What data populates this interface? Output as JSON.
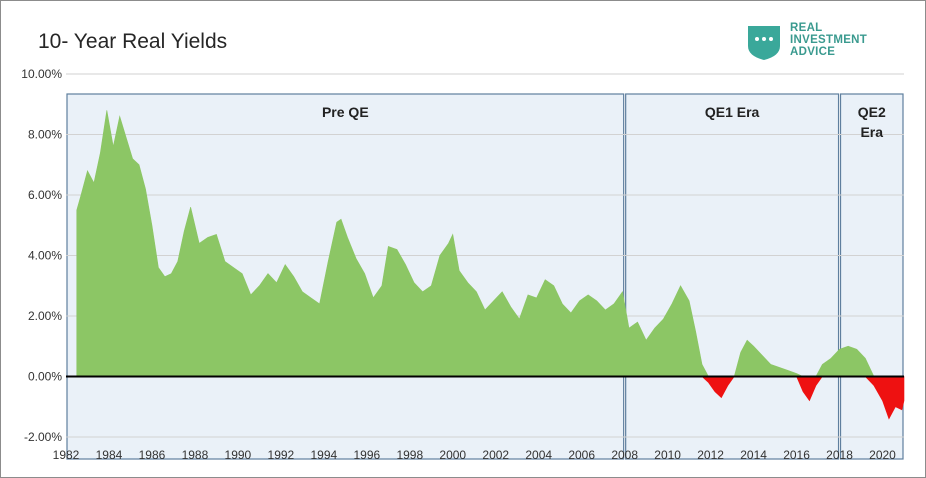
{
  "chart_data": {
    "type": "area",
    "title": "10- Year Real Yields",
    "xlabel": "",
    "ylabel": "",
    "xlim": [
      1982,
      2021
    ],
    "ylim": [
      -2,
      10
    ],
    "y_ticks": [
      -2,
      0,
      2,
      4,
      6,
      8,
      10
    ],
    "y_tick_labels": [
      "-2.00%",
      "0.00%",
      "2.00%",
      "4.00%",
      "6.00%",
      "8.00%",
      "10.00%"
    ],
    "x_ticks": [
      1982,
      1984,
      1986,
      1988,
      1990,
      1992,
      1994,
      1996,
      1998,
      2000,
      2002,
      2004,
      2006,
      2008,
      2010,
      2012,
      2014,
      2016,
      2018,
      2020
    ],
    "x_tick_labels": [
      "1982",
      "1984",
      "1986",
      "1988",
      "1990",
      "1992",
      "1994",
      "1996",
      "1998",
      "2000",
      "2002",
      "2004",
      "2006",
      "2008",
      "2010",
      "2012",
      "2014",
      "2016",
      "2018",
      "2020"
    ],
    "grid": "horizontal",
    "colors": {
      "positive": "#8cc665",
      "negative": "#ee1111",
      "zero_line": "#000000",
      "era_fill": "#eaf1f8",
      "era_border": "#5f7f9e"
    },
    "eras": [
      {
        "label": "Pre QE",
        "start": 1982,
        "end": 2008
      },
      {
        "label": "QE1 Era",
        "start": 2008,
        "end": 2018
      },
      {
        "label": "QE2 Era",
        "start": 2018,
        "end": 2021
      }
    ],
    "series": [
      {
        "x": [
          1982.5,
          1982.7,
          1983.0,
          1983.3,
          1983.6,
          1983.9,
          1984.2,
          1984.5,
          1984.8,
          1985.1,
          1985.4,
          1985.7,
          1986.0,
          1986.3,
          1986.6,
          1986.9,
          1987.2,
          1987.5,
          1987.8,
          1988.2,
          1988.6,
          1989.0,
          1989.4,
          1989.8,
          1990.2,
          1990.6,
          1991.0,
          1991.4,
          1991.8,
          1992.2,
          1992.6,
          1993.0,
          1993.4,
          1993.8,
          1994.2,
          1994.6,
          1994.8,
          1995.1,
          1995.5,
          1995.9,
          1996.3,
          1996.7,
          1997.0,
          1997.4,
          1997.8,
          1998.2,
          1998.6,
          1999.0,
          1999.4,
          1999.8,
          2000.0,
          2000.3,
          2000.7,
          2001.1,
          2001.5,
          2001.9,
          2002.3,
          2002.7,
          2003.1,
          2003.5,
          2003.9,
          2004.3,
          2004.7,
          2005.1,
          2005.5,
          2005.9,
          2006.3,
          2006.7,
          2007.1,
          2007.5,
          2007.9,
          2008.2,
          2008.6,
          2009.0,
          2009.4,
          2009.8,
          2010.2,
          2010.6,
          2011.0,
          2011.3,
          2011.6,
          2011.9,
          2012.2,
          2012.5,
          2012.8,
          2013.1,
          2013.4,
          2013.7,
          2014.0,
          2014.4,
          2014.8,
          2015.2,
          2015.6,
          2016.0,
          2016.3,
          2016.6,
          2016.9,
          2017.2,
          2017.6,
          2018.0,
          2018.4,
          2018.8,
          2019.2,
          2019.6,
          2020.0,
          2020.3,
          2020.6,
          2020.9,
          2021.0
        ],
        "y": [
          5.5,
          6.0,
          6.8,
          6.4,
          7.4,
          8.8,
          7.6,
          8.6,
          7.9,
          7.2,
          7.0,
          6.2,
          5.0,
          3.6,
          3.3,
          3.4,
          3.8,
          4.8,
          5.6,
          4.4,
          4.6,
          4.7,
          3.8,
          3.6,
          3.4,
          2.7,
          3.0,
          3.4,
          3.1,
          3.7,
          3.3,
          2.8,
          2.6,
          2.4,
          3.8,
          5.1,
          5.2,
          4.6,
          3.9,
          3.4,
          2.6,
          3.0,
          4.3,
          4.2,
          3.7,
          3.1,
          2.8,
          3.0,
          4.0,
          4.4,
          4.7,
          3.5,
          3.1,
          2.8,
          2.2,
          2.5,
          2.8,
          2.3,
          1.9,
          2.7,
          2.6,
          3.2,
          3.0,
          2.4,
          2.1,
          2.5,
          2.7,
          2.5,
          2.2,
          2.4,
          2.8,
          1.6,
          1.8,
          1.2,
          1.6,
          1.9,
          2.4,
          3.0,
          2.5,
          1.5,
          0.4,
          -0.2,
          -0.5,
          -0.7,
          -0.3,
          0.0,
          0.8,
          1.2,
          1.0,
          0.7,
          0.4,
          0.3,
          0.2,
          0.1,
          -0.5,
          -0.8,
          -0.3,
          0.4,
          0.6,
          0.9,
          1.0,
          0.9,
          0.6,
          -0.3,
          -0.8,
          -1.4,
          -1.0,
          -1.1,
          -0.8
        ]
      }
    ]
  },
  "branding": {
    "line1": "REAL",
    "line2": "INVESTMENT",
    "line3": "ADVICE"
  }
}
